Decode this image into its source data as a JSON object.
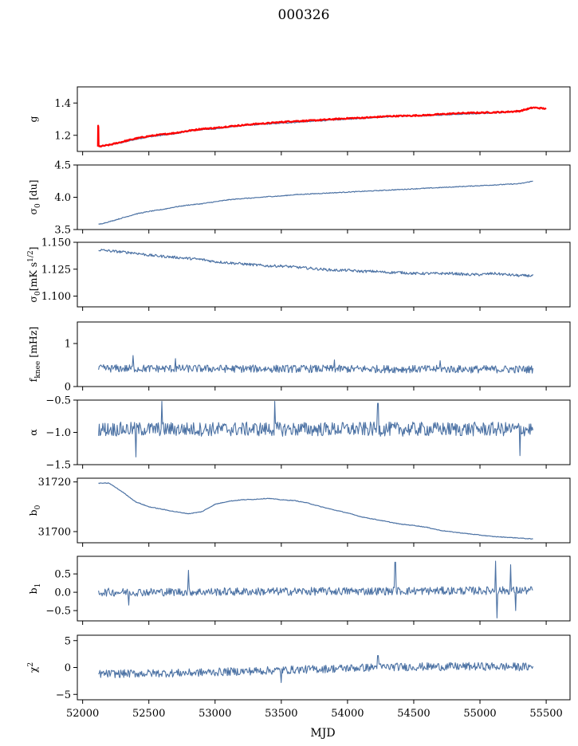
{
  "figure_title": "000326",
  "xlabel": "MJD",
  "colors": {
    "series": "#4c72a4",
    "overlay": "#ff0000",
    "axes": "#000000"
  },
  "chart_data": [
    {
      "type": "line",
      "ylabel": "g",
      "xlim": [
        51960,
        55680
      ],
      "ylim": [
        1.1,
        1.5
      ],
      "yticks": [
        {
          "v": 1.2,
          "label": "1.2"
        },
        {
          "v": 1.4,
          "label": "1.4"
        }
      ],
      "series": [
        {
          "color": "#4c72a4",
          "width": 1.2,
          "noise": 0.003,
          "x": [
            52120,
            52200,
            52300,
            52400,
            52500,
            52600,
            52700,
            52800,
            52900,
            53000,
            53100,
            53200,
            53300,
            53400,
            53500,
            53600,
            53700,
            53800,
            53900,
            54000,
            54100,
            54200,
            54300,
            54400,
            54500,
            54600,
            54700,
            54800,
            54900,
            55000,
            55100,
            55200,
            55300,
            55400
          ],
          "y": [
            1.13,
            1.14,
            1.155,
            1.175,
            1.19,
            1.2,
            1.21,
            1.225,
            1.235,
            1.24,
            1.25,
            1.26,
            1.265,
            1.27,
            1.275,
            1.28,
            1.285,
            1.29,
            1.295,
            1.3,
            1.305,
            1.31,
            1.315,
            1.318,
            1.32,
            1.322,
            1.325,
            1.33,
            1.332,
            1.335,
            1.338,
            1.342,
            1.35,
            1.368
          ]
        },
        {
          "color": "#ff0000",
          "width": 2.2,
          "noise": 0.004,
          "x": [
            52120,
            52200,
            52300,
            52400,
            52500,
            52600,
            52700,
            52800,
            52900,
            53000,
            53100,
            53200,
            53300,
            53400,
            53500,
            53600,
            53700,
            53800,
            53900,
            54000,
            54100,
            54200,
            54300,
            54400,
            54500,
            54600,
            54700,
            54800,
            54900,
            55000,
            55100,
            55200,
            55300,
            55400,
            55500
          ],
          "y": [
            1.13,
            1.14,
            1.16,
            1.18,
            1.195,
            1.205,
            1.215,
            1.228,
            1.24,
            1.245,
            1.255,
            1.262,
            1.27,
            1.275,
            1.282,
            1.288,
            1.29,
            1.295,
            1.3,
            1.305,
            1.308,
            1.312,
            1.318,
            1.32,
            1.322,
            1.325,
            1.33,
            1.335,
            1.338,
            1.34,
            1.342,
            1.345,
            1.35,
            1.372,
            1.365
          ]
        },
        {
          "color": "#ff0000",
          "width": 2.2,
          "noise": 0,
          "x": [
            52115,
            52117,
            52119,
            52121,
            52123
          ],
          "y": [
            1.13,
            1.26,
            1.25,
            1.14,
            1.13
          ]
        }
      ]
    },
    {
      "type": "line",
      "ylabel": "σ0 [du]",
      "xlim": [
        51960,
        55680
      ],
      "ylim": [
        3.5,
        4.5
      ],
      "yticks": [
        {
          "v": 3.5,
          "label": "3.5"
        },
        {
          "v": 4.0,
          "label": "4.0"
        },
        {
          "v": 4.5,
          "label": "4.5"
        }
      ],
      "series": [
        {
          "color": "#4c72a4",
          "width": 1.2,
          "noise": 0.006,
          "x": [
            52120,
            52200,
            52300,
            52400,
            52500,
            52600,
            52700,
            52800,
            52900,
            53000,
            53100,
            53200,
            53300,
            53400,
            53500,
            53600,
            53700,
            53800,
            53900,
            54000,
            54100,
            54200,
            54300,
            54400,
            54500,
            54600,
            54700,
            54800,
            54900,
            55000,
            55100,
            55200,
            55300,
            55400
          ],
          "y": [
            3.58,
            3.62,
            3.68,
            3.74,
            3.78,
            3.81,
            3.85,
            3.88,
            3.9,
            3.93,
            3.96,
            3.98,
            3.99,
            4.01,
            4.02,
            4.04,
            4.05,
            4.06,
            4.07,
            4.08,
            4.09,
            4.1,
            4.11,
            4.12,
            4.13,
            4.14,
            4.15,
            4.16,
            4.17,
            4.18,
            4.19,
            4.2,
            4.21,
            4.25
          ]
        }
      ]
    },
    {
      "type": "line",
      "ylabel": "σ0[mK s^1/2]",
      "xlim": [
        51960,
        55680
      ],
      "ylim": [
        1.09,
        1.15
      ],
      "yticks": [
        {
          "v": 1.1,
          "label": "1.100"
        },
        {
          "v": 1.125,
          "label": "1.125"
        },
        {
          "v": 1.15,
          "label": "1.150"
        }
      ],
      "series": [
        {
          "color": "#4c72a4",
          "width": 1.2,
          "noise": 0.0012,
          "x": [
            52120,
            52200,
            52300,
            52400,
            52500,
            52600,
            52700,
            52800,
            52900,
            53000,
            53100,
            53200,
            53300,
            53400,
            53500,
            53600,
            53700,
            53800,
            53900,
            54000,
            54100,
            54200,
            54300,
            54400,
            54500,
            54600,
            54700,
            54800,
            54900,
            55000,
            55100,
            55200,
            55300,
            55400
          ],
          "y": [
            1.143,
            1.142,
            1.141,
            1.14,
            1.138,
            1.137,
            1.136,
            1.135,
            1.134,
            1.132,
            1.131,
            1.13,
            1.129,
            1.128,
            1.128,
            1.127,
            1.126,
            1.125,
            1.124,
            1.124,
            1.123,
            1.123,
            1.122,
            1.122,
            1.121,
            1.121,
            1.121,
            1.121,
            1.12,
            1.12,
            1.121,
            1.12,
            1.119,
            1.119
          ]
        }
      ]
    },
    {
      "type": "line",
      "ylabel": "fknee [mHz]",
      "xlim": [
        51960,
        55680
      ],
      "ylim": [
        0,
        1.5
      ],
      "yticks": [
        {
          "v": 0,
          "label": "0"
        },
        {
          "v": 1,
          "label": "1"
        }
      ],
      "series": [
        {
          "color": "#4c72a4",
          "width": 1.1,
          "noise": 0.09,
          "spikes": [
            [
              52380,
              0.72
            ],
            [
              52700,
              0.65
            ],
            [
              53900,
              0.62
            ],
            [
              54700,
              0.6
            ]
          ],
          "x": [
            52120,
            55400
          ],
          "y": [
            0.42,
            0.4
          ]
        }
      ]
    },
    {
      "type": "line",
      "ylabel": "α",
      "xlim": [
        51960,
        55680
      ],
      "ylim": [
        -1.5,
        -0.5
      ],
      "yticks": [
        {
          "v": -1.5,
          "label": "−1.5"
        },
        {
          "v": -1.0,
          "label": "−1.0"
        },
        {
          "v": -0.5,
          "label": "−0.5"
        }
      ],
      "series": [
        {
          "color": "#4c72a4",
          "width": 1.1,
          "noise": 0.11,
          "spikes": [
            [
              52400,
              -1.38
            ],
            [
              52600,
              -0.52
            ],
            [
              53450,
              -0.52
            ],
            [
              54230,
              -0.55
            ],
            [
              55300,
              -1.36
            ]
          ],
          "x": [
            52120,
            55400
          ],
          "y": [
            -0.95,
            -0.95
          ]
        }
      ]
    },
    {
      "type": "line",
      "ylabel": "b0",
      "xlim": [
        51960,
        55680
      ],
      "ylim": [
        31695.5,
        31721.5
      ],
      "yticks": [
        {
          "v": 31700,
          "label": "31700"
        },
        {
          "v": 31720,
          "label": "31720"
        }
      ],
      "series": [
        {
          "color": "#4c72a4",
          "width": 1.2,
          "noise": 0.12,
          "x": [
            52120,
            52200,
            52300,
            52400,
            52500,
            52600,
            52700,
            52800,
            52900,
            53000,
            53100,
            53200,
            53300,
            53400,
            53500,
            53600,
            53700,
            53800,
            53900,
            54000,
            54100,
            54200,
            54300,
            54400,
            54500,
            54600,
            54700,
            54800,
            54900,
            55000,
            55100,
            55200,
            55300,
            55400
          ],
          "y": [
            31719.5,
            31719.5,
            31716,
            31712,
            31710,
            31709,
            31708,
            31707.2,
            31708,
            31711,
            31712.2,
            31712.8,
            31713,
            31713.4,
            31712.8,
            31712.5,
            31711.5,
            31710,
            31708.7,
            31707.5,
            31706,
            31705,
            31704,
            31703,
            31702.5,
            31701.7,
            31700.5,
            31699.8,
            31699.2,
            31698.6,
            31698,
            31697.7,
            31697.4,
            31697
          ]
        }
      ]
    },
    {
      "type": "line",
      "ylabel": "b1",
      "xlim": [
        51960,
        55680
      ],
      "ylim": [
        -0.78,
        0.98
      ],
      "yticks": [
        {
          "v": -0.5,
          "label": "−0.5"
        },
        {
          "v": 0.0,
          "label": "0.0"
        },
        {
          "v": 0.5,
          "label": "0.5"
        }
      ],
      "series": [
        {
          "color": "#4c72a4",
          "width": 1.1,
          "noise": 0.11,
          "spikes": [
            [
              52350,
              -0.35
            ],
            [
              52800,
              0.6
            ],
            [
              54360,
              0.82
            ],
            [
              55120,
              0.85
            ],
            [
              55130,
              -0.7
            ],
            [
              55230,
              0.75
            ],
            [
              55270,
              -0.5
            ]
          ],
          "x": [
            52120,
            55400
          ],
          "y": [
            0.0,
            0.05
          ]
        }
      ]
    },
    {
      "type": "line",
      "ylabel": "χ2",
      "xlim": [
        51960,
        55680
      ],
      "ylim": [
        -6,
        6
      ],
      "yticks": [
        {
          "v": -5,
          "label": "−5"
        },
        {
          "v": 0,
          "label": "0"
        },
        {
          "v": 5,
          "label": "5"
        }
      ],
      "xticks": [
        52000,
        52500,
        53000,
        53500,
        54000,
        54500,
        55000,
        55500
      ],
      "series": [
        {
          "color": "#4c72a4",
          "width": 1.1,
          "noise": 0.75,
          "spikes": [
            [
              53500,
              -2.8
            ],
            [
              54230,
              2.2
            ]
          ],
          "x": [
            52120,
            52800,
            53500,
            54300,
            55000,
            55400
          ],
          "y": [
            -1.2,
            -1.0,
            -0.5,
            0.1,
            0.2,
            0.1
          ]
        }
      ]
    }
  ]
}
